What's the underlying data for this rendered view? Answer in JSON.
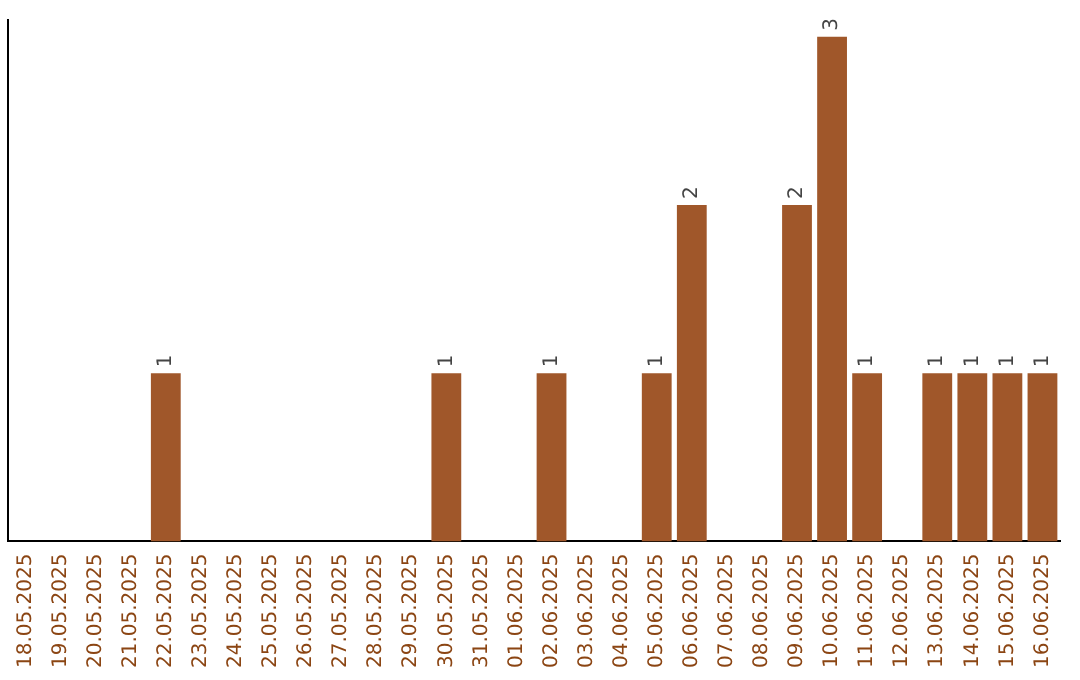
{
  "chart_data": {
    "type": "bar",
    "categories": [
      "18.05.2025",
      "19.05.2025",
      "20.05.2025",
      "21.05.2025",
      "22.05.2025",
      "23.05.2025",
      "24.05.2025",
      "25.05.2025",
      "26.05.2025",
      "27.05.2025",
      "28.05.2025",
      "29.05.2025",
      "30.05.2025",
      "31.05.2025",
      "01.06.2025",
      "02.06.2025",
      "03.06.2025",
      "04.06.2025",
      "05.06.2025",
      "06.06.2025",
      "07.06.2025",
      "08.06.2025",
      "09.06.2025",
      "10.06.2025",
      "11.06.2025",
      "12.06.2025",
      "13.06.2025",
      "14.06.2025",
      "15.06.2025",
      "16.06.2025"
    ],
    "values": [
      0,
      0,
      0,
      0,
      1,
      0,
      0,
      0,
      0,
      0,
      0,
      0,
      1,
      0,
      0,
      1,
      0,
      0,
      1,
      2,
      0,
      0,
      2,
      3,
      1,
      0,
      1,
      1,
      1,
      1
    ],
    "value_labels": [
      null,
      null,
      null,
      null,
      "1",
      null,
      null,
      null,
      null,
      null,
      null,
      null,
      "1",
      null,
      null,
      "1",
      null,
      null,
      "1",
      "2",
      null,
      null,
      "2",
      "3",
      "1",
      null,
      "1",
      "1",
      "1",
      "1"
    ],
    "color": "#a0572a",
    "ylim": [
      0,
      3.1
    ],
    "tick_labels": "x",
    "grid": false,
    "legend": false
  }
}
